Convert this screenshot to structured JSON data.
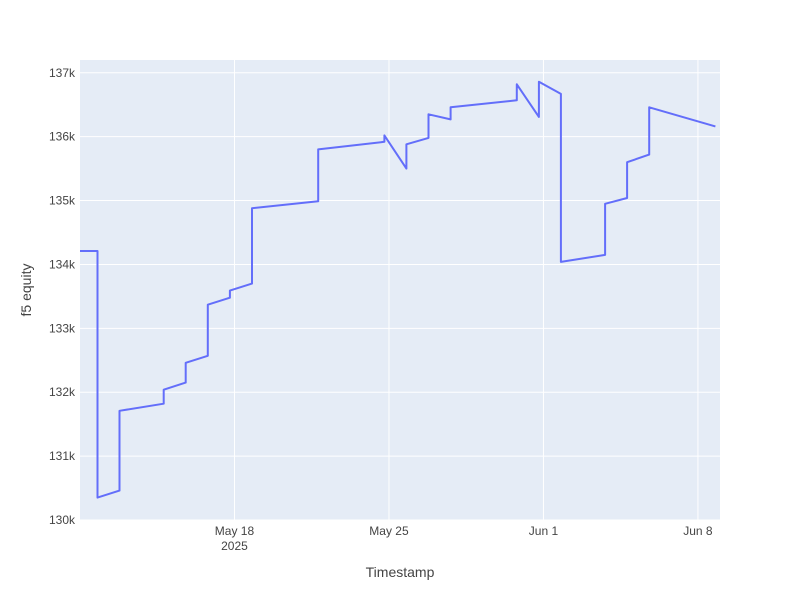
{
  "chart_data": {
    "type": "line",
    "title": "",
    "xlabel": "Timestamp",
    "ylabel": "f5 equity",
    "xlim": [
      "2025-05-11",
      "2025-06-09"
    ],
    "ylim": [
      130000,
      137200
    ],
    "x_ticks": [
      {
        "date": "2025-05-18",
        "label": "May 18",
        "sublabel": "2025"
      },
      {
        "date": "2025-05-25",
        "label": "May 25",
        "sublabel": ""
      },
      {
        "date": "2025-06-01",
        "label": "Jun 1",
        "sublabel": ""
      },
      {
        "date": "2025-06-08",
        "label": "Jun 8",
        "sublabel": ""
      }
    ],
    "y_ticks": [
      {
        "value": 130000,
        "label": "130k"
      },
      {
        "value": 131000,
        "label": "131k"
      },
      {
        "value": 132000,
        "label": "132k"
      },
      {
        "value": 133000,
        "label": "133k"
      },
      {
        "value": 134000,
        "label": "134k"
      },
      {
        "value": 135000,
        "label": "135k"
      },
      {
        "value": 136000,
        "label": "136k"
      },
      {
        "value": 137000,
        "label": "137k"
      }
    ],
    "grid": true,
    "colors": {
      "line": "#636efa",
      "plot_bg": "#e5ecf6",
      "grid": "#ffffff"
    },
    "series": [
      {
        "x": [
          "2025-05-11 00:00",
          "2025-05-11 19:00",
          "2025-05-11 19:00",
          "2025-05-12 19:00",
          "2025-05-12 19:00",
          "2025-05-14 19:00",
          "2025-05-14 19:00",
          "2025-05-15 19:00",
          "2025-05-15 19:00",
          "2025-05-16 19:00",
          "2025-05-16 19:00",
          "2025-05-17 19:00",
          "2025-05-17 19:00",
          "2025-05-18 19:00",
          "2025-05-18 19:00",
          "2025-05-21 19:00",
          "2025-05-21 19:00",
          "2025-05-24 19:00",
          "2025-05-24 19:00",
          "2025-05-25 19:00",
          "2025-05-25 19:00",
          "2025-05-26 19:00",
          "2025-05-26 19:00",
          "2025-05-27 19:00",
          "2025-05-27 19:00",
          "2025-05-30 19:00",
          "2025-05-30 19:00",
          "2025-05-31 19:00",
          "2025-05-31 19:00",
          "2025-06-01 19:00",
          "2025-06-01 19:00",
          "2025-06-03 19:00",
          "2025-06-03 19:00",
          "2025-06-04 19:00",
          "2025-06-04 19:00",
          "2025-06-05 19:00",
          "2025-06-05 19:00",
          "2025-06-08 19:00"
        ],
        "y": [
          134210,
          134210,
          130350,
          130460,
          131710,
          131820,
          132040,
          132150,
          132460,
          132570,
          133370,
          133480,
          133590,
          133700,
          134880,
          134990,
          135800,
          135920,
          136020,
          135500,
          135880,
          135980,
          136350,
          136270,
          136460,
          136570,
          136820,
          136310,
          136860,
          136670,
          134040,
          134150,
          134950,
          135040,
          135600,
          135720,
          136460,
          136160
        ]
      }
    ]
  }
}
